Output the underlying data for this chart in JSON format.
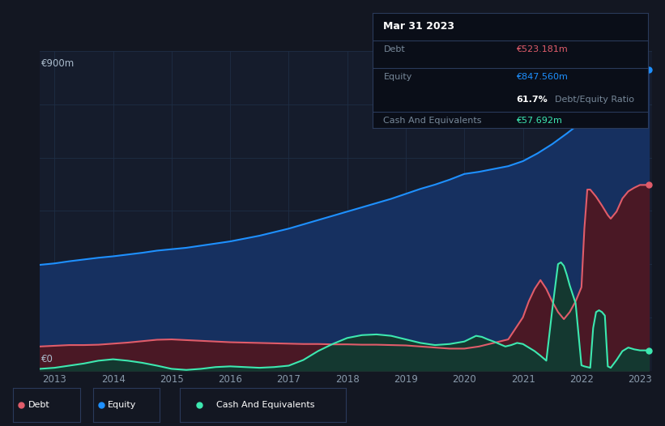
{
  "bg_color": "#131722",
  "plot_bg_color": "#151c2c",
  "grid_color": "#1e2d45",
  "equity_color": "#1e90ff",
  "equity_fill": "#163060",
  "debt_color": "#e05c6a",
  "debt_fill": "#4a1825",
  "cash_color": "#3de8b0",
  "cash_fill": "#143830",
  "legend_border": "#2a3a5a",
  "ylabel_text": "€900m",
  "y0_text": "€0",
  "x_ticks": [
    2013,
    2014,
    2015,
    2016,
    2017,
    2018,
    2019,
    2020,
    2021,
    2022,
    2023
  ],
  "title_box": {
    "date": "Mar 31 2023",
    "debt_label": "Debt",
    "debt_value": "€523.181m",
    "equity_label": "Equity",
    "equity_value": "€847.560m",
    "ratio_bold": "61.7%",
    "ratio_text": "Debt/Equity Ratio",
    "cash_label": "Cash And Equivalents",
    "cash_value": "€57.692m"
  },
  "equity_data": [
    [
      2012.75,
      298
    ],
    [
      2013.0,
      302
    ],
    [
      2013.25,
      308
    ],
    [
      2013.5,
      313
    ],
    [
      2013.75,
      318
    ],
    [
      2014.0,
      322
    ],
    [
      2014.25,
      327
    ],
    [
      2014.5,
      332
    ],
    [
      2014.75,
      338
    ],
    [
      2015.0,
      342
    ],
    [
      2015.25,
      346
    ],
    [
      2015.5,
      352
    ],
    [
      2015.75,
      358
    ],
    [
      2016.0,
      364
    ],
    [
      2016.25,
      372
    ],
    [
      2016.5,
      380
    ],
    [
      2016.75,
      390
    ],
    [
      2017.0,
      400
    ],
    [
      2017.25,
      412
    ],
    [
      2017.5,
      424
    ],
    [
      2017.75,
      436
    ],
    [
      2018.0,
      448
    ],
    [
      2018.25,
      460
    ],
    [
      2018.5,
      472
    ],
    [
      2018.75,
      484
    ],
    [
      2019.0,
      498
    ],
    [
      2019.25,
      512
    ],
    [
      2019.5,
      524
    ],
    [
      2019.75,
      538
    ],
    [
      2020.0,
      554
    ],
    [
      2020.25,
      560
    ],
    [
      2020.5,
      568
    ],
    [
      2020.75,
      576
    ],
    [
      2021.0,
      590
    ],
    [
      2021.25,
      612
    ],
    [
      2021.5,
      638
    ],
    [
      2021.75,
      668
    ],
    [
      2022.0,
      700
    ],
    [
      2022.25,
      730
    ],
    [
      2022.5,
      760
    ],
    [
      2022.75,
      800
    ],
    [
      2023.0,
      847
    ],
    [
      2023.15,
      847
    ]
  ],
  "debt_data": [
    [
      2012.75,
      68
    ],
    [
      2013.0,
      70
    ],
    [
      2013.25,
      72
    ],
    [
      2013.5,
      72
    ],
    [
      2013.75,
      73
    ],
    [
      2014.0,
      76
    ],
    [
      2014.25,
      79
    ],
    [
      2014.5,
      83
    ],
    [
      2014.75,
      87
    ],
    [
      2015.0,
      88
    ],
    [
      2015.25,
      86
    ],
    [
      2015.5,
      84
    ],
    [
      2015.75,
      82
    ],
    [
      2016.0,
      80
    ],
    [
      2016.25,
      79
    ],
    [
      2016.5,
      78
    ],
    [
      2016.75,
      77
    ],
    [
      2017.0,
      76
    ],
    [
      2017.25,
      75
    ],
    [
      2017.5,
      75
    ],
    [
      2017.75,
      74
    ],
    [
      2018.0,
      74
    ],
    [
      2018.25,
      73
    ],
    [
      2018.5,
      73
    ],
    [
      2018.75,
      72
    ],
    [
      2019.0,
      71
    ],
    [
      2019.25,
      68
    ],
    [
      2019.5,
      65
    ],
    [
      2019.75,
      62
    ],
    [
      2020.0,
      62
    ],
    [
      2020.25,
      68
    ],
    [
      2020.5,
      78
    ],
    [
      2020.75,
      88
    ],
    [
      2021.0,
      150
    ],
    [
      2021.1,
      195
    ],
    [
      2021.2,
      230
    ],
    [
      2021.3,
      255
    ],
    [
      2021.4,
      230
    ],
    [
      2021.5,
      195
    ],
    [
      2021.6,
      165
    ],
    [
      2021.7,
      145
    ],
    [
      2021.8,
      165
    ],
    [
      2021.9,
      195
    ],
    [
      2022.0,
      235
    ],
    [
      2022.05,
      400
    ],
    [
      2022.1,
      510
    ],
    [
      2022.15,
      510
    ],
    [
      2022.2,
      500
    ],
    [
      2022.25,
      490
    ],
    [
      2022.35,
      465
    ],
    [
      2022.45,
      438
    ],
    [
      2022.5,
      428
    ],
    [
      2022.6,
      448
    ],
    [
      2022.7,
      485
    ],
    [
      2022.8,
      505
    ],
    [
      2022.9,
      515
    ],
    [
      2023.0,
      523
    ],
    [
      2023.15,
      523
    ]
  ],
  "cash_data": [
    [
      2012.75,
      5
    ],
    [
      2013.0,
      8
    ],
    [
      2013.25,
      14
    ],
    [
      2013.5,
      20
    ],
    [
      2013.75,
      28
    ],
    [
      2014.0,
      32
    ],
    [
      2014.25,
      28
    ],
    [
      2014.5,
      22
    ],
    [
      2014.75,
      14
    ],
    [
      2015.0,
      5
    ],
    [
      2015.25,
      2
    ],
    [
      2015.5,
      5
    ],
    [
      2015.75,
      10
    ],
    [
      2016.0,
      12
    ],
    [
      2016.25,
      10
    ],
    [
      2016.5,
      8
    ],
    [
      2016.75,
      10
    ],
    [
      2017.0,
      14
    ],
    [
      2017.25,
      30
    ],
    [
      2017.5,
      55
    ],
    [
      2017.75,
      75
    ],
    [
      2018.0,
      92
    ],
    [
      2018.25,
      100
    ],
    [
      2018.5,
      102
    ],
    [
      2018.75,
      98
    ],
    [
      2019.0,
      88
    ],
    [
      2019.25,
      78
    ],
    [
      2019.5,
      72
    ],
    [
      2019.75,
      75
    ],
    [
      2020.0,
      82
    ],
    [
      2020.1,
      90
    ],
    [
      2020.2,
      98
    ],
    [
      2020.3,
      95
    ],
    [
      2020.4,
      88
    ],
    [
      2020.5,
      82
    ],
    [
      2020.6,
      75
    ],
    [
      2020.7,
      68
    ],
    [
      2020.8,
      72
    ],
    [
      2020.9,
      78
    ],
    [
      2021.0,
      75
    ],
    [
      2021.1,
      65
    ],
    [
      2021.2,
      55
    ],
    [
      2021.3,
      42
    ],
    [
      2021.4,
      28
    ],
    [
      2021.5,
      170
    ],
    [
      2021.6,
      300
    ],
    [
      2021.65,
      305
    ],
    [
      2021.7,
      295
    ],
    [
      2021.75,
      270
    ],
    [
      2021.8,
      240
    ],
    [
      2021.9,
      190
    ],
    [
      2022.0,
      15
    ],
    [
      2022.05,
      12
    ],
    [
      2022.1,
      10
    ],
    [
      2022.15,
      8
    ],
    [
      2022.2,
      120
    ],
    [
      2022.25,
      165
    ],
    [
      2022.3,
      170
    ],
    [
      2022.35,
      165
    ],
    [
      2022.4,
      155
    ],
    [
      2022.45,
      12
    ],
    [
      2022.5,
      8
    ],
    [
      2022.6,
      30
    ],
    [
      2022.7,
      55
    ],
    [
      2022.8,
      65
    ],
    [
      2022.9,
      60
    ],
    [
      2023.0,
      57
    ],
    [
      2023.15,
      57
    ]
  ],
  "ymax": 900,
  "xmin": 2012.75,
  "xmax": 2023.2
}
